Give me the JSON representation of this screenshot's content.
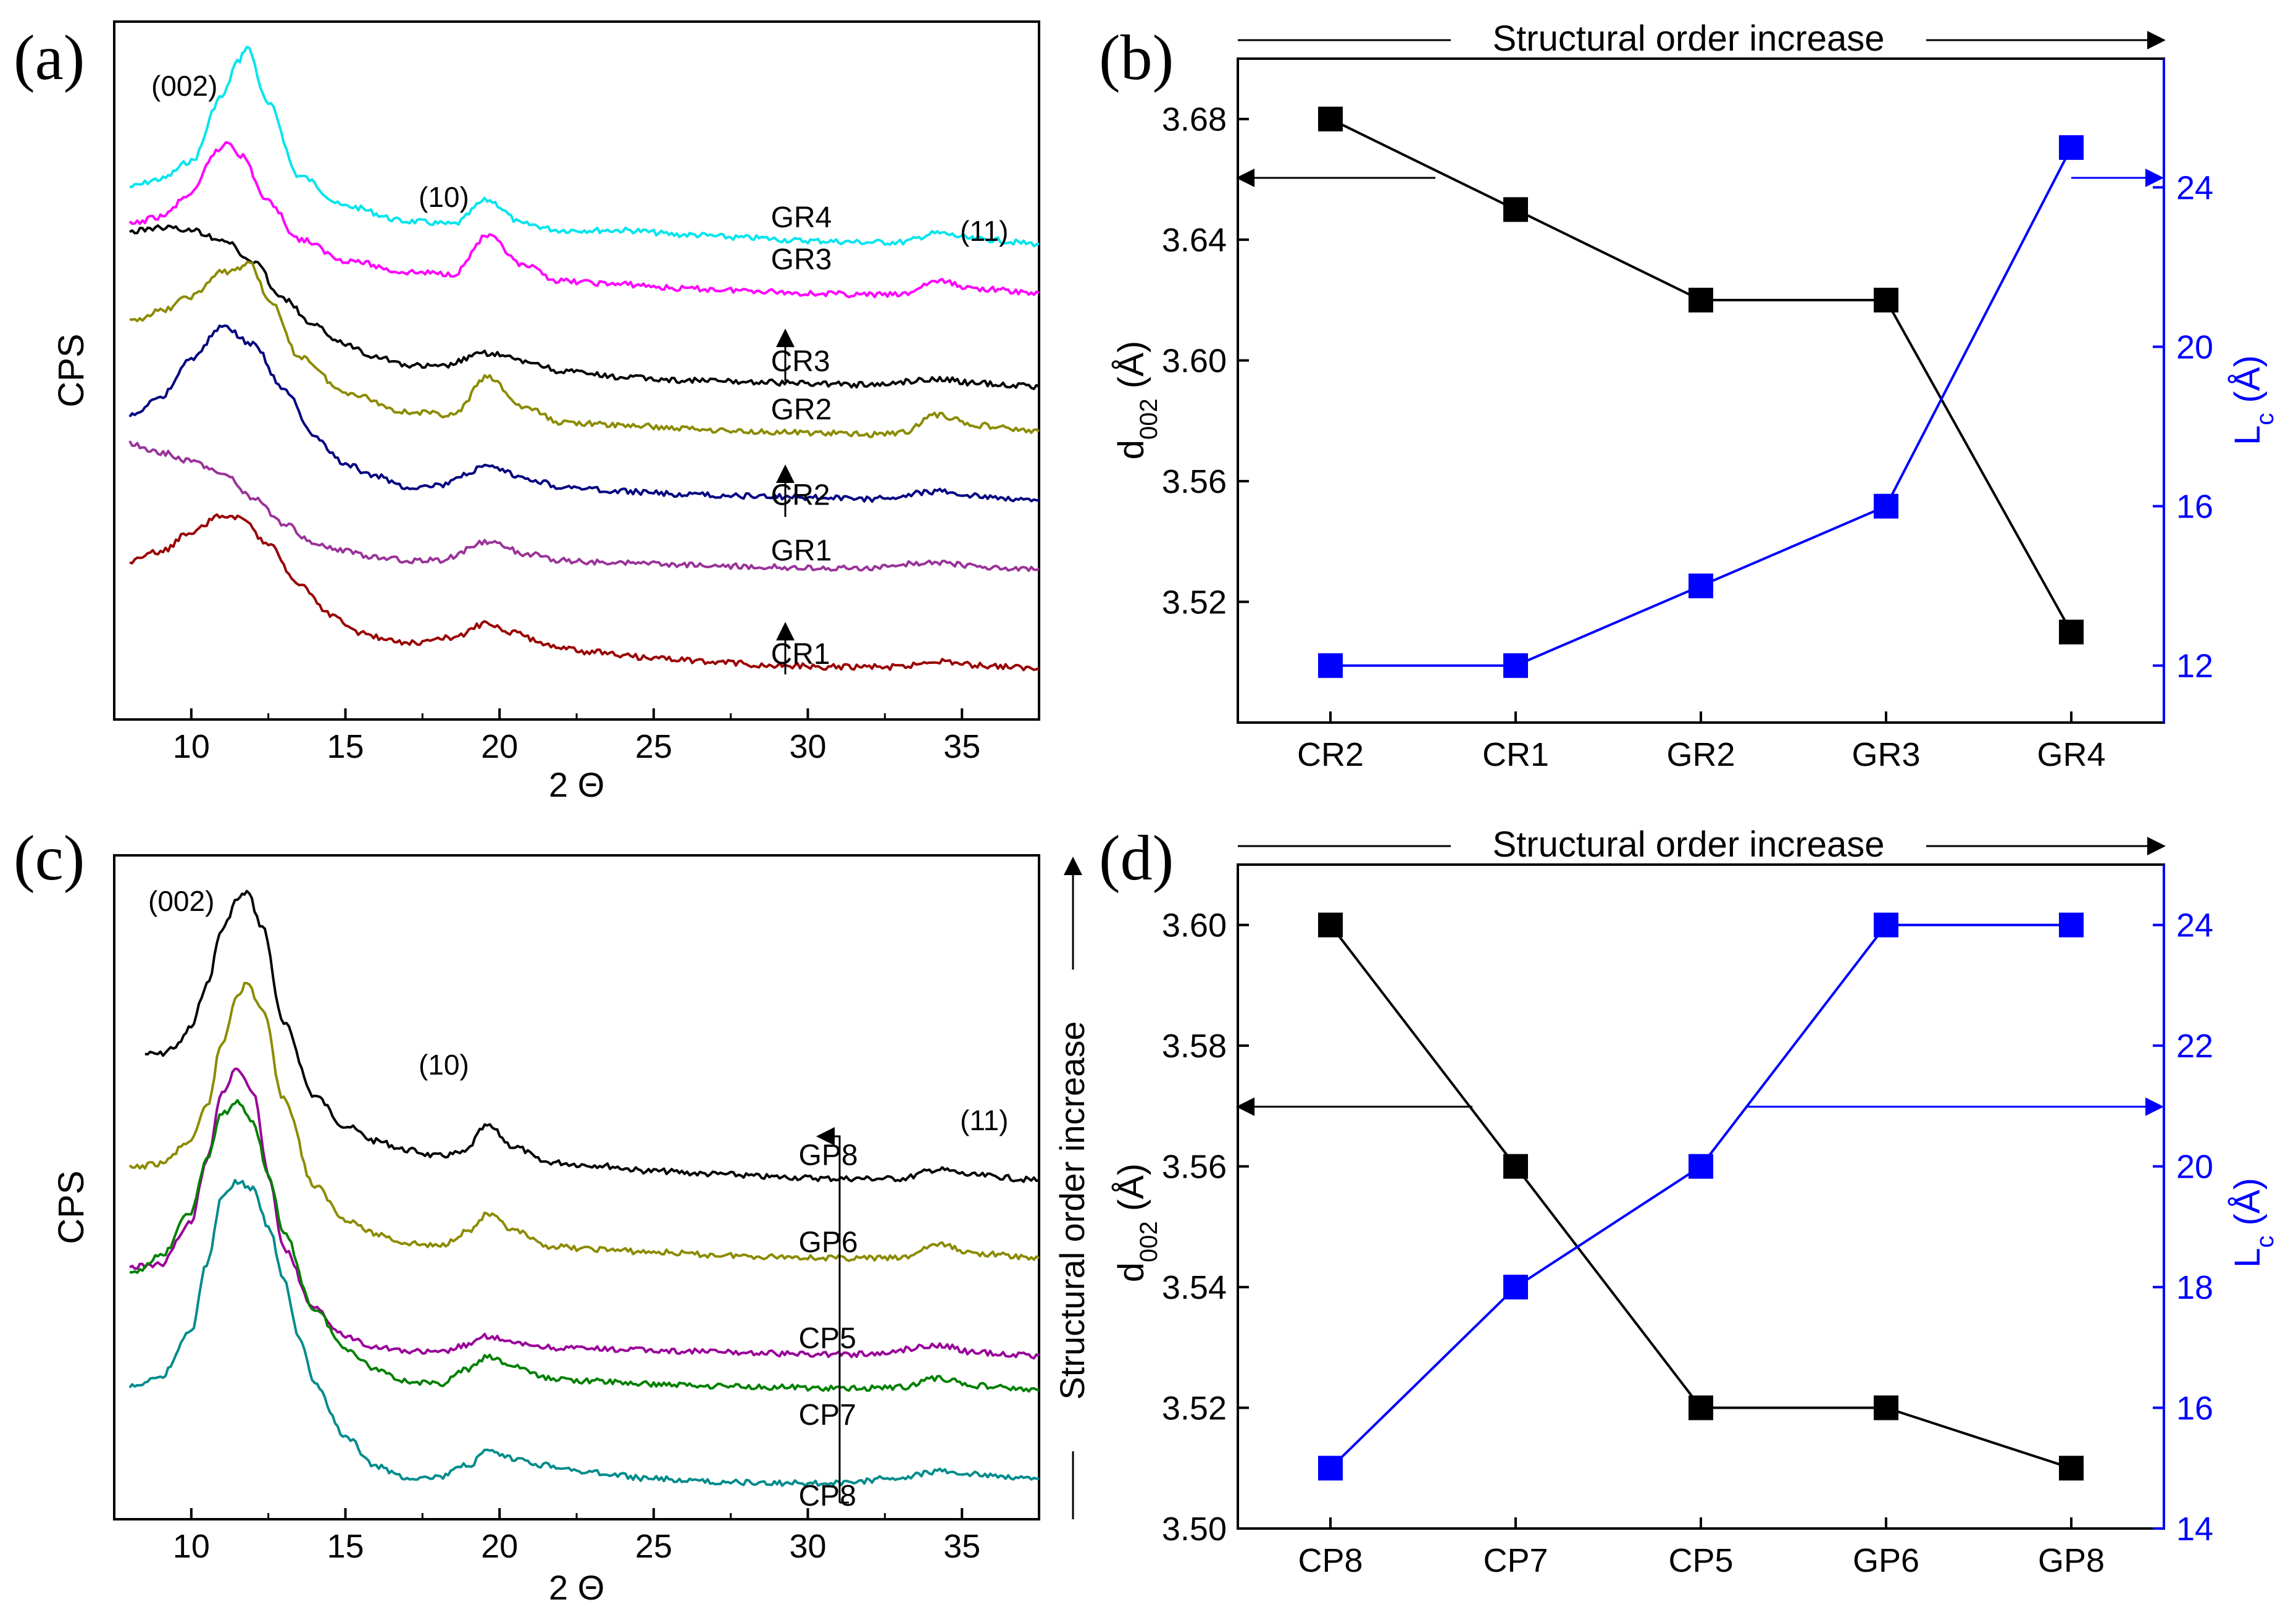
{
  "figure": {
    "colors": {
      "axis": "#000000",
      "blue": "#0000ff"
    }
  },
  "chart_data": [
    {
      "panel": "(a)",
      "type": "line",
      "xlabel": "2 Θ",
      "ylabel": "CPS",
      "xlim": [
        7.5,
        37.5
      ],
      "x_ticks": [
        "10",
        "15",
        "20",
        "25",
        "30",
        "35"
      ],
      "peak_labels": [
        "(002)",
        "(10)",
        "(11)"
      ],
      "series": [
        {
          "name": "GR4",
          "color": "#00e5ee",
          "x": [
            8,
            9,
            10,
            11,
            11.5,
            11.8,
            12.5,
            13.5,
            15,
            17,
            18.5,
            19.6,
            20.8,
            22,
            24,
            26,
            28,
            30,
            32,
            33,
            34.2,
            35.5,
            37.5
          ],
          "y": [
            355,
            360,
            372,
            415,
            438,
            448,
            410,
            362,
            342,
            332,
            330,
            346,
            330,
            326,
            326,
            323,
            321,
            319,
            318,
            318,
            324,
            320,
            317
          ]
        },
        {
          "name": "GR3",
          "color": "#ff00ff",
          "x": [
            8,
            9,
            10,
            10.8,
            11.2,
            11.6,
            12.5,
            13.5,
            15,
            17,
            18.5,
            19.6,
            20.8,
            22,
            24,
            26,
            28,
            30,
            32,
            33,
            34.2,
            35.5,
            37.5
          ],
          "y": [
            330,
            335,
            350,
            378,
            385,
            376,
            345,
            320,
            306,
            298,
            297,
            322,
            302,
            292,
            290,
            287,
            286,
            284,
            283,
            283,
            292,
            287,
            284
          ]
        },
        {
          "name": "CR3",
          "color": "#000000",
          "x": [
            8,
            9,
            10,
            11,
            12,
            13,
            14,
            15,
            16,
            17,
            18,
            19.6,
            21,
            22,
            24,
            26,
            28,
            30,
            32,
            34.2,
            35.5,
            37.5
          ],
          "y": [
            325,
            328,
            326,
            320,
            305,
            280,
            262,
            250,
            242,
            236,
            235,
            244,
            238,
            232,
            228,
            226,
            225,
            224,
            223,
            227,
            224,
            222
          ]
        },
        {
          "name": "GR2",
          "color": "#8b8b00",
          "x": [
            8,
            9,
            10,
            11,
            11.5,
            11.9,
            12.5,
            13.5,
            15,
            17,
            18.5,
            19.6,
            20.8,
            22,
            24,
            26,
            28,
            30,
            32,
            33,
            34.2,
            35.5,
            37.5
          ],
          "y": [
            265,
            272,
            282,
            298,
            300,
            305,
            280,
            242,
            218,
            205,
            203,
            228,
            208,
            198,
            196,
            194,
            192,
            191,
            190,
            191,
            203,
            196,
            192
          ]
        },
        {
          "name": "CR2",
          "color": "#000080",
          "x": [
            8,
            9,
            10,
            11,
            12,
            13,
            14,
            15,
            16,
            17,
            18,
            19.6,
            21,
            22,
            24,
            26,
            28,
            30,
            32,
            34.2,
            35.5,
            37.5
          ],
          "y": [
            202,
            215,
            240,
            262,
            250,
            220,
            188,
            170,
            162,
            155,
            156,
            168,
            160,
            155,
            152,
            150,
            149,
            148,
            147,
            152,
            149,
            146
          ]
        },
        {
          "name": "GR1",
          "color": "#993399",
          "x": [
            8,
            9,
            10,
            11,
            12,
            13,
            14,
            15,
            16,
            17,
            18,
            19.6,
            21,
            22,
            24,
            26,
            28,
            30,
            32,
            34.2,
            35.5,
            37.5
          ],
          "y": [
            184,
            178,
            172,
            164,
            148,
            130,
            118,
            112,
            108,
            106,
            106,
            118,
            110,
            106,
            104,
            103,
            102,
            101,
            101,
            105,
            102,
            100
          ]
        },
        {
          "name": "CR1",
          "color": "#990000",
          "x": [
            8,
            9,
            10,
            11,
            11.5,
            12.5,
            13.5,
            14.5,
            15.5,
            16.5,
            17.5,
            18.5,
            19.6,
            20.5,
            21.5,
            23,
            25,
            27,
            29,
            31,
            33,
            34.2,
            35.5,
            37.5
          ],
          "y": [
            105,
            112,
            125,
            136,
            135,
            118,
            90,
            70,
            58,
            52,
            51,
            55,
            64,
            58,
            50,
            45,
            41,
            38,
            36,
            35,
            35,
            39,
            36,
            34
          ]
        }
      ],
      "annotations": [
        {
          "text": "GR4",
          "x": 28.8,
          "y": 328
        },
        {
          "text": "GR3",
          "x": 28.8,
          "y": 300
        },
        {
          "text": "CR3",
          "x": 28.8,
          "y": 232
        },
        {
          "text": "GR2",
          "x": 28.8,
          "y": 200
        },
        {
          "text": "CR2",
          "x": 28.8,
          "y": 143
        },
        {
          "text": "GR1",
          "x": 28.8,
          "y": 106
        },
        {
          "text": "CR1",
          "x": 28.8,
          "y": 37
        }
      ]
    },
    {
      "panel": "(b)",
      "type": "line",
      "top_label": "Structural order increase",
      "categories": [
        "CR2",
        "CR1",
        "GR2",
        "GR3",
        "GR4"
      ],
      "ylabel_left": "d002 (Å)",
      "ylabel_right": "Lc (Å)",
      "ylim_left": [
        3.48,
        3.7
      ],
      "ylim_right": [
        10.57,
        27.23
      ],
      "y_ticks_left": [
        "3.52",
        "3.56",
        "3.60",
        "3.64",
        "3.68"
      ],
      "y_ticks_right": [
        "12",
        "16",
        "20",
        "24"
      ],
      "series": [
        {
          "axis": "left",
          "color": "#000000",
          "values": [
            3.68,
            3.65,
            3.62,
            3.62,
            3.51
          ]
        },
        {
          "axis": "right",
          "color": "#0000ff",
          "values": [
            12,
            12,
            14,
            16,
            25
          ]
        }
      ]
    },
    {
      "panel": "(c)",
      "type": "line",
      "xlabel": "2 Θ",
      "ylabel": "CPS",
      "xlim": [
        7.5,
        37.5
      ],
      "x_ticks": [
        "10",
        "15",
        "20",
        "25",
        "30",
        "35"
      ],
      "peak_labels": [
        "(002)",
        "(10)",
        "(11)"
      ],
      "side_label": "Structural order increase",
      "series": [
        {
          "name": "GP8",
          "color": "#000000",
          "x": [
            8.5,
            9,
            9.5,
            10,
            10.5,
            11,
            11.5,
            11.8,
            12.3,
            13,
            14,
            15,
            16,
            17,
            18,
            18.8,
            19.6,
            20.5,
            21.5,
            23,
            25,
            27,
            29,
            31,
            33,
            34.2,
            35.5,
            37.5
          ],
          "y": [
            310,
            310,
            315,
            328,
            356,
            393,
            413,
            418,
            395,
            330,
            282,
            262,
            252,
            246,
            242,
            244,
            262,
            248,
            238,
            236,
            232,
            230,
            228,
            227,
            227,
            233,
            229,
            226
          ]
        },
        {
          "name": "GP6",
          "color": "#8b8b00",
          "x": [
            8,
            9,
            10,
            10.5,
            11,
            11.5,
            11.8,
            12.3,
            13,
            14,
            15,
            16,
            17,
            18,
            19,
            19.6,
            20.5,
            21.5,
            23,
            25,
            27,
            29,
            31,
            33,
            34.2,
            35.5,
            37.5
          ],
          "y": [
            234,
            237,
            252,
            275,
            317,
            350,
            357,
            340,
            280,
            222,
            200,
            190,
            184,
            182,
            192,
            203,
            192,
            182,
            180,
            178,
            176,
            175,
            174,
            174,
            183,
            177,
            174
          ]
        },
        {
          "name": "CP5",
          "color": "#990099",
          "x": [
            8,
            9,
            10,
            10.5,
            11,
            11.5,
            12,
            12.5,
            13,
            14,
            15,
            16,
            17,
            18,
            19,
            19.6,
            20.5,
            22,
            24,
            26,
            28,
            30,
            32,
            34.2,
            35.5,
            37.5
          ],
          "y": [
            168,
            170,
            198,
            240,
            285,
            300,
            285,
            230,
            180,
            140,
            122,
            115,
            112,
            111,
            116,
            122,
            117,
            114,
            113,
            112,
            111,
            110,
            110,
            116,
            111,
            109
          ]
        },
        {
          "name": "CP7",
          "color": "#008000",
          "x": [
            8,
            9,
            10,
            10.5,
            11,
            11.5,
            12,
            12.5,
            13,
            14,
            15,
            16,
            17,
            18,
            19,
            19.6,
            20.5,
            21.5,
            23,
            25,
            27,
            29,
            31,
            33,
            34.2,
            35.5,
            37.5
          ],
          "y": [
            163,
            175,
            205,
            240,
            270,
            278,
            265,
            230,
            190,
            140,
            114,
            100,
            92,
            90,
            100,
            108,
            102,
            94,
            92,
            90,
            89,
            88,
            87,
            88,
            94,
            89,
            86
          ]
        },
        {
          "name": "CP8",
          "color": "#008b8b",
          "x": [
            8,
            9,
            10,
            10.5,
            11,
            11.5,
            12,
            12.5,
            13,
            13.5,
            14,
            15,
            16,
            17,
            18,
            19,
            19.6,
            20.5,
            21.5,
            23,
            25,
            27,
            29,
            31,
            33,
            34.2,
            35.5,
            37.5
          ],
          "y": [
            88,
            95,
            125,
            170,
            215,
            225,
            220,
            195,
            160,
            120,
            90,
            55,
            35,
            28,
            28,
            36,
            45,
            40,
            36,
            31,
            27,
            25,
            24,
            24,
            28,
            32,
            30,
            27
          ]
        }
      ],
      "annotations": [
        {
          "text": "GP8",
          "x": 29.7,
          "y": 236
        },
        {
          "text": "GP6",
          "x": 29.7,
          "y": 178
        },
        {
          "text": "CP5",
          "x": 29.7,
          "y": 114
        },
        {
          "text": "CP7",
          "x": 29.7,
          "y": 63
        },
        {
          "text": "CP8",
          "x": 29.7,
          "y": 9
        }
      ]
    },
    {
      "panel": "(d)",
      "type": "line",
      "top_label": "Structural order increase",
      "categories": [
        "CP8",
        "CP7",
        "CP5",
        "GP6",
        "GP8"
      ],
      "ylabel_left": "d002 (Å)",
      "ylabel_right": "Lc (Å)",
      "ylim_left": [
        3.5,
        3.61
      ],
      "ylim_right": [
        14,
        25
      ],
      "y_ticks_left": [
        "3.50",
        "3.52",
        "3.54",
        "3.56",
        "3.58",
        "3.60"
      ],
      "y_ticks_right": [
        "14",
        "16",
        "18",
        "20",
        "22",
        "24"
      ],
      "series": [
        {
          "axis": "left",
          "color": "#000000",
          "values": [
            3.6,
            3.56,
            3.52,
            3.52,
            3.51
          ]
        },
        {
          "axis": "right",
          "color": "#0000ff",
          "values": [
            15,
            18,
            20,
            24,
            24
          ]
        }
      ]
    }
  ]
}
